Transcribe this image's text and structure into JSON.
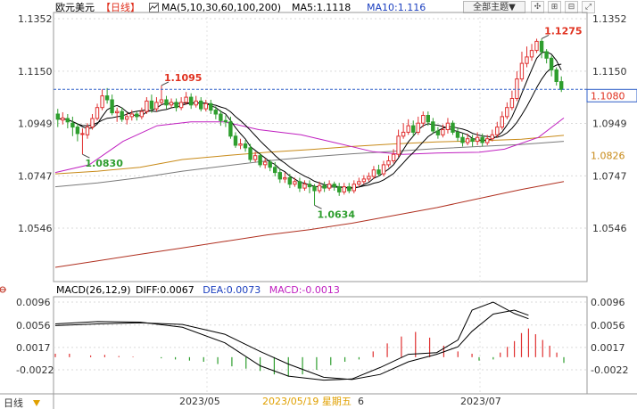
{
  "header": {
    "symbol": "欧元美元",
    "period": "【日线】",
    "ma_label": "MA(5,10,30,60,100,200)",
    "ma5": "MA5:1.1118",
    "ma10": "MA10:1.116",
    "theme_button": "全部主题▼"
  },
  "macd_header": {
    "label": "MACD(26,12,9)",
    "diff": "DIFF:0.0067",
    "dea": "DEA:0.0073",
    "macd": "MACD:-0.0013"
  },
  "footer": {
    "period": "日线",
    "date1": "2023/05",
    "date2": "2023/07",
    "crosshair_date": "2023/05/19 星期五",
    "crosshair_suffix": "6"
  },
  "colors": {
    "up": "#e03030",
    "down": "#2e9e2e",
    "ma5": "#000000",
    "ma10": "#000000",
    "ma30": "#c020c0",
    "ma60": "#c88a18",
    "ma100": "#7a7a7a",
    "ma200": "#b03020",
    "price_line": "#3060c8",
    "diff": "#000000",
    "dea": "#000000"
  },
  "chart_data": [
    {
      "type": "candlestick",
      "title": "欧元美元 日线",
      "y_ticks": [
        "1.1352",
        "1.1150",
        "1.0949",
        "1.0747",
        "1.0546"
      ],
      "ylim": [
        1.045,
        1.1352
      ],
      "current_price": "1.1080",
      "right_label_2": "1.0826",
      "annotations": [
        {
          "text": "1.1095",
          "value": 1.1095,
          "kind": "high"
        },
        {
          "text": "1.0830",
          "value": 1.083,
          "kind": "low"
        },
        {
          "text": "1.0634",
          "value": 1.0634,
          "kind": "low"
        },
        {
          "text": "1.1275",
          "value": 1.1275,
          "kind": "high"
        }
      ],
      "x_labels": [
        "2023/05",
        "2023/07"
      ],
      "grid": true,
      "moving_averages": [
        {
          "name": "MA5",
          "value": 1.1118
        },
        {
          "name": "MA10",
          "value": 1.116
        },
        {
          "name": "MA30"
        },
        {
          "name": "MA60"
        },
        {
          "name": "MA100"
        },
        {
          "name": "MA200"
        }
      ],
      "ma_polylines": {
        "ma30": [
          [
            0,
            1.076
          ],
          [
            8,
            1.079
          ],
          [
            16,
            1.088
          ],
          [
            24,
            1.094
          ],
          [
            32,
            1.0955
          ],
          [
            40,
            1.0955
          ],
          [
            48,
            1.0925
          ],
          [
            58,
            1.0905
          ],
          [
            66,
            1.0875
          ],
          [
            75,
            1.084
          ],
          [
            82,
            1.083
          ],
          [
            90,
            1.0835
          ],
          [
            100,
            1.0838
          ],
          [
            106,
            1.085
          ],
          [
            114,
            1.0895
          ],
          [
            120,
            1.097
          ]
        ],
        "ma60": [
          [
            0,
            1.0755
          ],
          [
            10,
            1.0765
          ],
          [
            20,
            1.078
          ],
          [
            30,
            1.081
          ],
          [
            40,
            1.0825
          ],
          [
            50,
            1.0838
          ],
          [
            60,
            1.0848
          ],
          [
            70,
            1.086
          ],
          [
            80,
            1.087
          ],
          [
            90,
            1.0878
          ],
          [
            100,
            1.0882
          ],
          [
            110,
            1.0888
          ],
          [
            120,
            1.0903
          ]
        ],
        "ma100": [
          [
            0,
            1.0705
          ],
          [
            10,
            1.072
          ],
          [
            20,
            1.074
          ],
          [
            30,
            1.0765
          ],
          [
            40,
            1.0785
          ],
          [
            50,
            1.0805
          ],
          [
            60,
            1.082
          ],
          [
            70,
            1.0832
          ],
          [
            80,
            1.0842
          ],
          [
            90,
            1.0852
          ],
          [
            100,
            1.086
          ],
          [
            110,
            1.0868
          ],
          [
            120,
            1.088
          ]
        ],
        "ma200": [
          [
            0,
            1.0395
          ],
          [
            10,
            1.042
          ],
          [
            20,
            1.0445
          ],
          [
            30,
            1.047
          ],
          [
            40,
            1.0495
          ],
          [
            50,
            1.052
          ],
          [
            60,
            1.054
          ],
          [
            70,
            1.0565
          ],
          [
            80,
            1.0595
          ],
          [
            90,
            1.0625
          ],
          [
            100,
            1.066
          ],
          [
            110,
            1.0695
          ],
          [
            120,
            1.0725
          ]
        ]
      },
      "candles": [
        [
          1.0985,
          1.0965,
          1.1005,
          1.0935
        ],
        [
          1.0962,
          1.097,
          1.0992,
          1.0945
        ],
        [
          1.0968,
          1.0955,
          1.0985,
          1.093
        ],
        [
          1.095,
          1.0935,
          1.0975,
          1.09
        ],
        [
          1.0935,
          1.091,
          1.095,
          1.088
        ],
        [
          1.0908,
          1.091,
          1.093,
          1.083
        ],
        [
          1.0905,
          1.0935,
          1.095,
          1.089
        ],
        [
          1.0935,
          1.0968,
          1.0985,
          1.0925
        ],
        [
          1.0968,
          1.101,
          1.1025,
          1.096
        ],
        [
          1.101,
          1.1055,
          1.108,
          1.1
        ],
        [
          1.1055,
          1.104,
          1.1085,
          1.1025
        ],
        [
          1.104,
          1.099,
          1.106,
          1.098
        ],
        [
          1.099,
          1.0995,
          1.101,
          1.0955
        ],
        [
          1.0995,
          1.0965,
          1.101,
          1.0955
        ],
        [
          1.0965,
          1.0975,
          1.099,
          1.0945
        ],
        [
          1.0975,
          1.0985,
          1.1,
          1.096
        ],
        [
          1.0985,
          1.0975,
          1.0995,
          1.096
        ],
        [
          1.0975,
          1.0995,
          1.101,
          1.0965
        ],
        [
          1.0995,
          1.1035,
          1.105,
          1.0985
        ],
        [
          1.1035,
          1.1005,
          1.106,
          1.099
        ],
        [
          1.1005,
          1.103,
          1.105,
          1.0995
        ],
        [
          1.103,
          1.104,
          1.1095,
          1.102
        ],
        [
          1.104,
          1.102,
          1.1055,
          1.1005
        ],
        [
          1.102,
          1.103,
          1.1045,
          1.101
        ],
        [
          1.103,
          1.101,
          1.1045,
          1.0995
        ],
        [
          1.101,
          1.103,
          1.105,
          1.1
        ],
        [
          1.103,
          1.105,
          1.107,
          1.102
        ],
        [
          1.105,
          1.102,
          1.1065,
          1.1005
        ],
        [
          1.102,
          1.1035,
          1.1055,
          1.101
        ],
        [
          1.1035,
          1.1005,
          1.105,
          1.0995
        ],
        [
          1.1005,
          1.1025,
          1.104,
          1.0995
        ],
        [
          1.1025,
          1.1,
          1.104,
          1.0985
        ],
        [
          1.1,
          1.0985,
          1.1015,
          1.0965
        ],
        [
          1.0985,
          1.096,
          1.1,
          1.094
        ],
        [
          1.096,
          1.0955,
          1.098,
          1.0935
        ],
        [
          1.0955,
          1.09,
          1.0975,
          1.089
        ],
        [
          1.09,
          1.0865,
          1.0915,
          1.0855
        ],
        [
          1.0865,
          1.087,
          1.089,
          1.085
        ],
        [
          1.087,
          1.0855,
          1.0885,
          1.084
        ],
        [
          1.0855,
          1.081,
          1.087,
          1.08
        ],
        [
          1.081,
          1.0825,
          1.084,
          1.08
        ],
        [
          1.0825,
          1.079,
          1.0835,
          1.078
        ],
        [
          1.079,
          1.08,
          1.0815,
          1.0775
        ],
        [
          1.08,
          1.078,
          1.081,
          1.0765
        ],
        [
          1.078,
          1.076,
          1.08,
          1.0745
        ],
        [
          1.076,
          1.0735,
          1.0775,
          1.072
        ],
        [
          1.0735,
          1.074,
          1.076,
          1.072
        ],
        [
          1.074,
          1.0715,
          1.0755,
          1.07
        ],
        [
          1.0715,
          1.0725,
          1.074,
          1.0705
        ],
        [
          1.0725,
          1.07,
          1.074,
          1.0685
        ],
        [
          1.07,
          1.0715,
          1.073,
          1.069
        ],
        [
          1.0715,
          1.0705,
          1.073,
          1.068
        ],
        [
          1.0705,
          1.069,
          1.0715,
          1.0634
        ],
        [
          1.069,
          1.071,
          1.0725,
          1.068
        ],
        [
          1.071,
          1.07,
          1.0725,
          1.0685
        ],
        [
          1.07,
          1.0715,
          1.073,
          1.069
        ],
        [
          1.0715,
          1.0705,
          1.0725,
          1.069
        ],
        [
          1.0705,
          1.0685,
          1.072,
          1.067
        ],
        [
          1.0685,
          1.0705,
          1.072,
          1.0675
        ],
        [
          1.0705,
          1.069,
          1.072,
          1.068
        ],
        [
          1.069,
          1.0715,
          1.073,
          1.068
        ],
        [
          1.0715,
          1.0725,
          1.074,
          1.0705
        ],
        [
          1.0725,
          1.0735,
          1.075,
          1.0715
        ],
        [
          1.0735,
          1.0745,
          1.076,
          1.0725
        ],
        [
          1.0745,
          1.077,
          1.0785,
          1.0735
        ],
        [
          1.077,
          1.0755,
          1.079,
          1.0745
        ],
        [
          1.0755,
          1.079,
          1.0805,
          1.0745
        ],
        [
          1.079,
          1.0805,
          1.0825,
          1.078
        ],
        [
          1.0805,
          1.083,
          1.085,
          1.0795
        ],
        [
          1.083,
          1.09,
          1.0925,
          1.082
        ],
        [
          1.09,
          1.0915,
          1.095,
          1.089
        ],
        [
          1.0915,
          1.094,
          1.0965,
          1.0905
        ],
        [
          1.094,
          1.0915,
          1.096,
          1.09
        ],
        [
          1.0915,
          1.095,
          1.0975,
          1.0905
        ],
        [
          1.095,
          1.098,
          1.0995,
          1.0935
        ],
        [
          1.098,
          1.0955,
          1.0995,
          1.094
        ],
        [
          1.0955,
          1.092,
          1.097,
          1.091
        ],
        [
          1.092,
          1.0905,
          1.0935,
          1.089
        ],
        [
          1.0905,
          1.0925,
          1.0945,
          1.0895
        ],
        [
          1.0925,
          1.095,
          1.097,
          1.091
        ],
        [
          1.095,
          1.0915,
          1.096,
          1.0905
        ],
        [
          1.0915,
          1.0895,
          1.093,
          1.088
        ],
        [
          1.0895,
          1.0875,
          1.091,
          1.086
        ],
        [
          1.0875,
          1.089,
          1.091,
          1.0865
        ],
        [
          1.089,
          1.088,
          1.0905,
          1.086
        ],
        [
          1.088,
          1.0895,
          1.0915,
          1.0865
        ],
        [
          1.0895,
          1.0875,
          1.091,
          1.086
        ],
        [
          1.0875,
          1.089,
          1.0905,
          1.0865
        ],
        [
          1.089,
          1.0905,
          1.0925,
          1.088
        ],
        [
          1.0905,
          1.0935,
          1.0955,
          1.0895
        ],
        [
          1.0935,
          1.0975,
          1.0995,
          1.0925
        ],
        [
          1.0975,
          1.101,
          1.103,
          1.0965
        ],
        [
          1.101,
          1.1045,
          1.1075,
          1.1
        ],
        [
          1.1045,
          1.112,
          1.115,
          1.1035
        ],
        [
          1.112,
          1.118,
          1.1225,
          1.111
        ],
        [
          1.118,
          1.1205,
          1.1245,
          1.1165
        ],
        [
          1.1205,
          1.123,
          1.1255,
          1.119
        ],
        [
          1.123,
          1.1265,
          1.1275,
          1.122
        ],
        [
          1.1265,
          1.1225,
          1.1275,
          1.12
        ],
        [
          1.1225,
          1.12,
          1.1235,
          1.118
        ],
        [
          1.12,
          1.1155,
          1.121,
          1.113
        ],
        [
          1.1155,
          1.111,
          1.1165,
          1.1095
        ],
        [
          1.111,
          1.108,
          1.113,
          1.107
        ]
      ]
    },
    {
      "type": "macd",
      "title": "MACD(26,12,9)",
      "y_ticks": [
        "0.0096",
        "0.0056",
        "0.0017",
        "-0.0022"
      ],
      "ylim": [
        -0.0046,
        0.0118
      ],
      "diff_polyline": [
        [
          0,
          0.0058
        ],
        [
          12,
          0.0062
        ],
        [
          24,
          0.0061
        ],
        [
          36,
          0.0052
        ],
        [
          48,
          0.0025
        ],
        [
          58,
          -0.0015
        ],
        [
          66,
          -0.0033
        ],
        [
          76,
          -0.004
        ],
        [
          84,
          -0.0038
        ],
        [
          92,
          -0.0018
        ],
        [
          100,
          0.0005
        ],
        [
          108,
          0.0008
        ],
        [
          114,
          0.003
        ],
        [
          118,
          0.0082
        ],
        [
          124,
          0.0096
        ],
        [
          130,
          0.0076
        ],
        [
          134,
          0.0067
        ]
      ],
      "dea_polyline": [
        [
          0,
          0.0055
        ],
        [
          12,
          0.0058
        ],
        [
          24,
          0.006
        ],
        [
          36,
          0.0057
        ],
        [
          48,
          0.004
        ],
        [
          58,
          0.001
        ],
        [
          66,
          -0.0012
        ],
        [
          76,
          -0.0035
        ],
        [
          84,
          -0.0039
        ],
        [
          92,
          -0.003
        ],
        [
          100,
          -0.0008
        ],
        [
          108,
          0.0005
        ],
        [
          114,
          0.0018
        ],
        [
          118,
          0.0045
        ],
        [
          124,
          0.0075
        ],
        [
          130,
          0.0082
        ],
        [
          134,
          0.0073
        ]
      ],
      "histogram": [
        [
          0,
          0.0006
        ],
        [
          4,
          0.0006
        ],
        [
          10,
          0.0003
        ],
        [
          14,
          0.0004
        ],
        [
          18,
          0.0002
        ],
        [
          22,
          0.0001
        ],
        [
          26,
          0.0
        ],
        [
          30,
          -0.0002
        ],
        [
          34,
          -0.0004
        ],
        [
          38,
          -0.0006
        ],
        [
          42,
          -0.0008
        ],
        [
          46,
          -0.0012
        ],
        [
          50,
          -0.0016
        ],
        [
          54,
          -0.002
        ],
        [
          58,
          -0.0024
        ],
        [
          62,
          -0.003
        ],
        [
          66,
          -0.0034
        ],
        [
          70,
          -0.003
        ],
        [
          74,
          -0.0022
        ],
        [
          78,
          -0.0014
        ],
        [
          82,
          -0.0008
        ],
        [
          86,
          -0.0004
        ],
        [
          90,
          0.001
        ],
        [
          94,
          0.0024
        ],
        [
          98,
          0.0036
        ],
        [
          102,
          0.0044
        ],
        [
          106,
          0.0034
        ],
        [
          110,
          0.002
        ],
        [
          114,
          0.001
        ],
        [
          118,
          0.0006
        ],
        [
          120,
          -0.0006
        ],
        [
          124,
          -0.0004
        ],
        [
          126,
          0.0008
        ],
        [
          128,
          0.0018
        ],
        [
          130,
          0.0028
        ],
        [
          132,
          0.0042
        ],
        [
          134,
          0.005
        ],
        [
          136,
          0.004
        ],
        [
          138,
          0.003
        ],
        [
          140,
          0.002
        ],
        [
          142,
          0.0008
        ],
        [
          144,
          -0.001
        ]
      ]
    }
  ]
}
